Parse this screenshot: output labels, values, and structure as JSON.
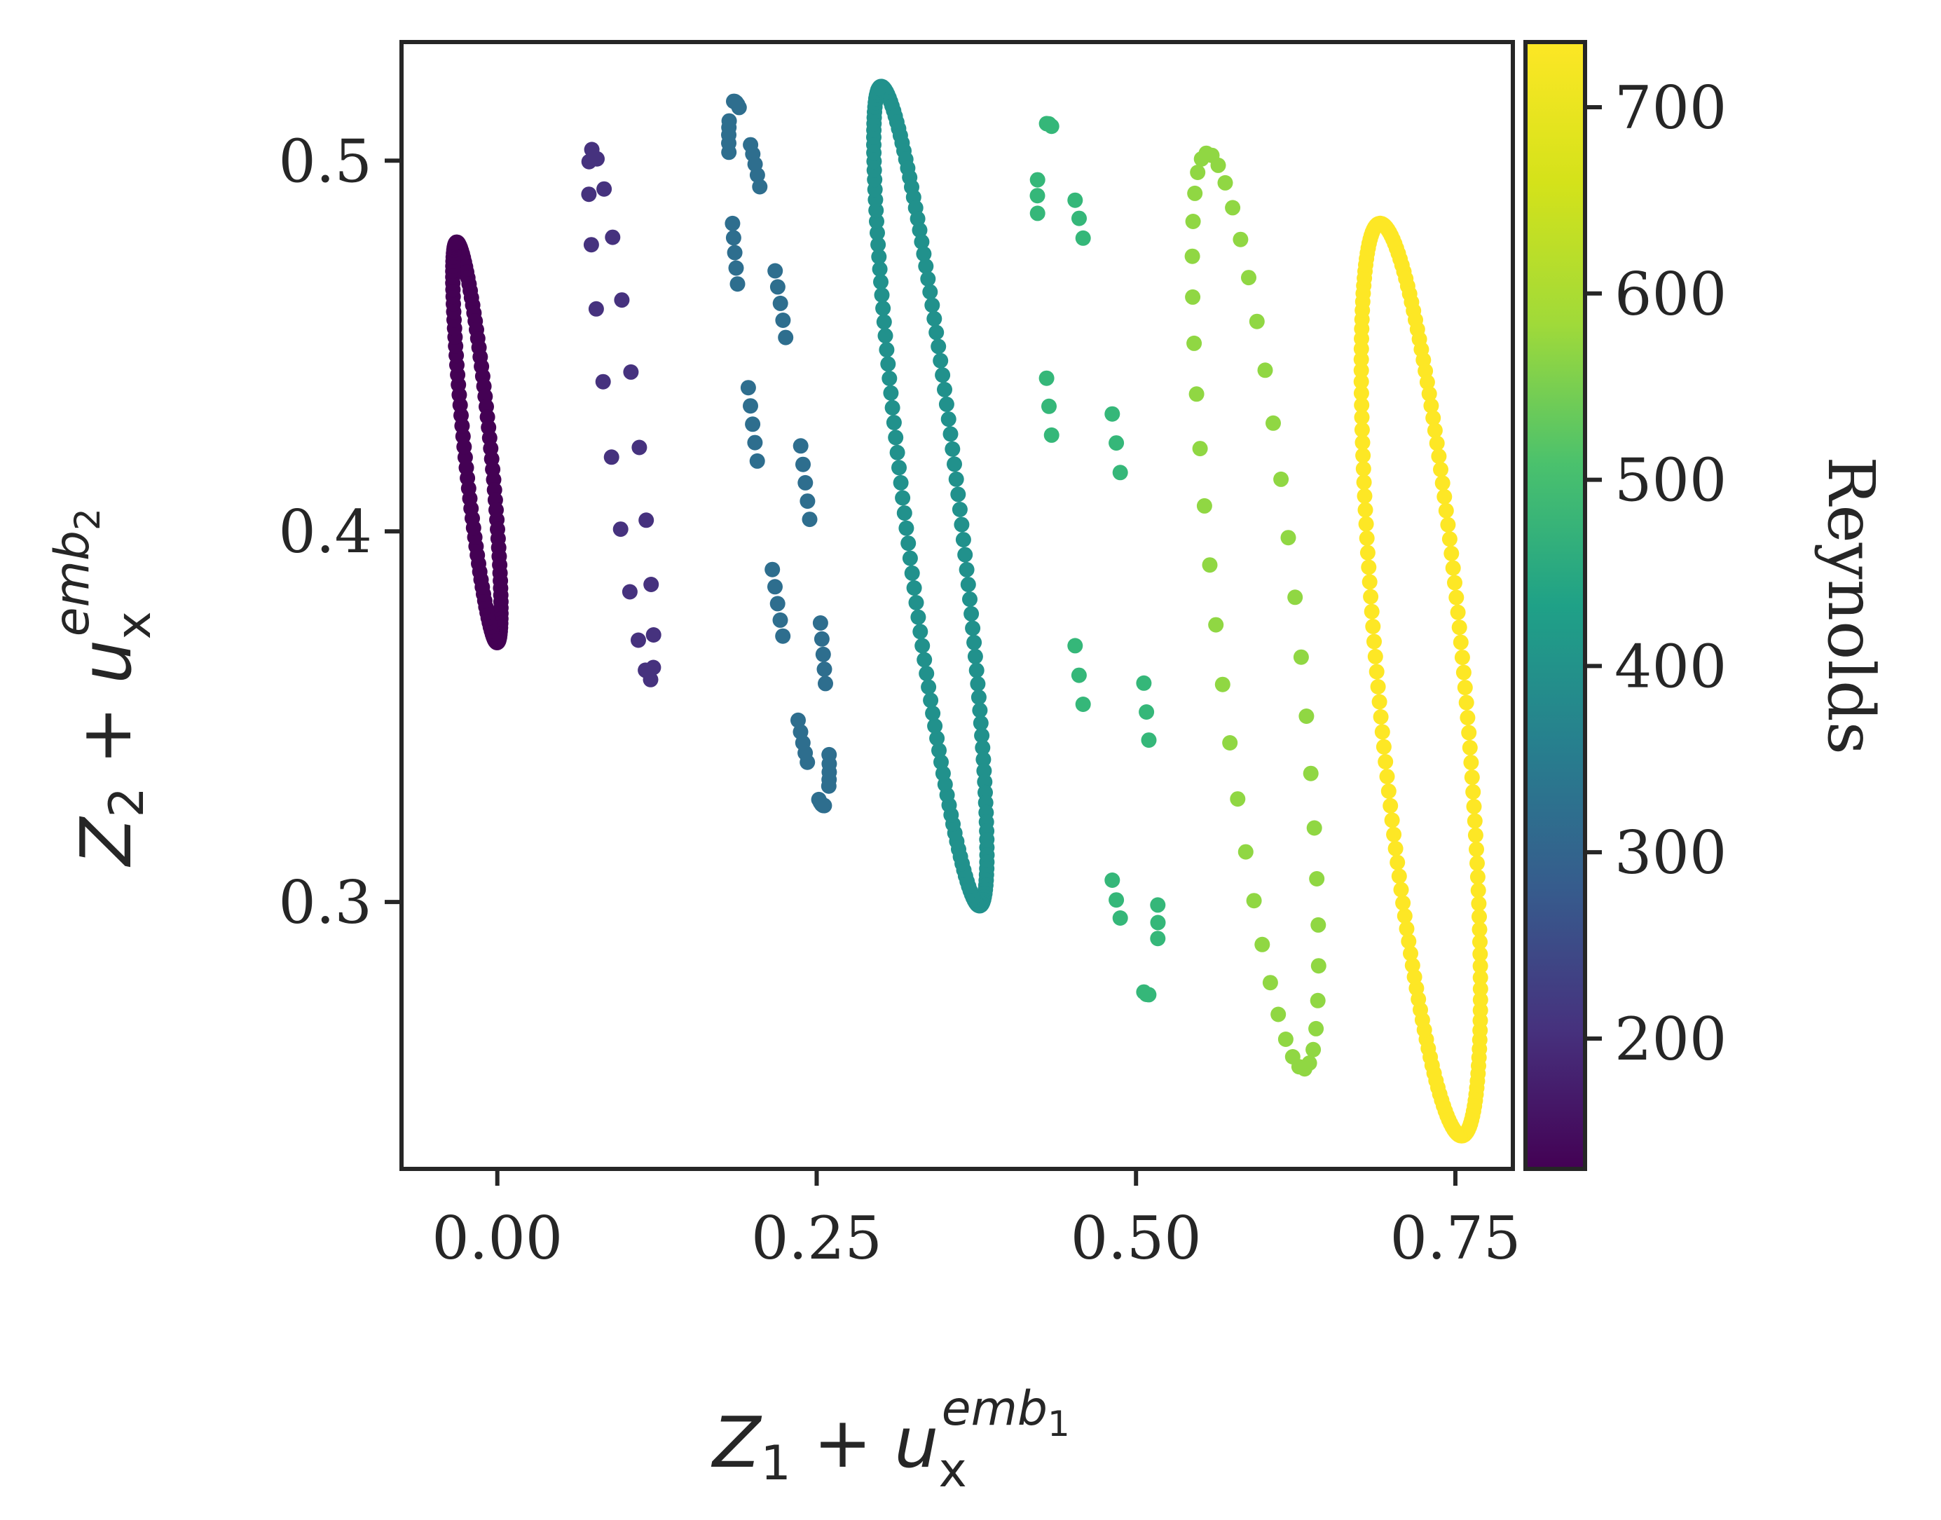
{
  "chart_data": {
    "type": "scatter",
    "xlabel": "Z_1 + u_x^{emb_1}",
    "ylabel": "Z_2 + u_x^{emb_2}",
    "xlim": [
      -0.075,
      0.795
    ],
    "ylim": [
      0.228,
      0.532
    ],
    "x_ticks": [
      0.0,
      0.25,
      0.5,
      0.75
    ],
    "x_tick_labels": [
      "0.00",
      "0.25",
      "0.50",
      "0.75"
    ],
    "y_ticks": [
      0.3,
      0.4,
      0.5
    ],
    "y_tick_labels": [
      "0.3",
      "0.4",
      "0.5"
    ],
    "grid": false,
    "colorbar": {
      "label": "Reynolds",
      "colormap": "viridis",
      "range": [
        130,
        735
      ],
      "ticks": [
        200,
        300,
        400,
        500,
        600,
        700
      ],
      "tick_labels": [
        "200",
        "300",
        "400",
        "500",
        "600",
        "700"
      ]
    },
    "series": [
      {
        "reynolds": 150,
        "color": "#440154",
        "pattern": "dense",
        "points": 120,
        "top": [
          -0.032,
          0.478
        ],
        "bottom": [
          0.0,
          0.37
        ],
        "width": 0.02
      },
      {
        "reynolds": 200,
        "color": "#46327e",
        "pattern": "dots",
        "points": 22,
        "top": [
          0.074,
          0.503
        ],
        "bottom": [
          0.12,
          0.36
        ],
        "width": 0.022
      },
      {
        "reynolds": 300,
        "color": "#2e6e8e",
        "pattern": "dashes",
        "points": 120,
        "top": [
          0.185,
          0.516
        ],
        "bottom": [
          0.256,
          0.326
        ],
        "width": 0.034
      },
      {
        "reynolds": 400,
        "color": "#21918c",
        "pattern": "dense",
        "points": 170,
        "top": [
          0.3,
          0.52
        ],
        "bottom": [
          0.378,
          0.299
        ],
        "width": 0.042
      },
      {
        "reynolds": 500,
        "color": "#35b779",
        "pattern": "dashes_sparse",
        "points": 90,
        "top": [
          0.43,
          0.51
        ],
        "bottom": [
          0.51,
          0.275
        ],
        "width": 0.05
      },
      {
        "reynolds": 600,
        "color": "#90d743",
        "pattern": "dots",
        "points": 48,
        "top": [
          0.555,
          0.502
        ],
        "bottom": [
          0.632,
          0.255
        ],
        "width": 0.062
      },
      {
        "reynolds": 700,
        "color": "#fde725",
        "pattern": "dense",
        "points": 190,
        "top": [
          0.69,
          0.483
        ],
        "bottom": [
          0.756,
          0.237
        ],
        "width": 0.066
      }
    ]
  }
}
